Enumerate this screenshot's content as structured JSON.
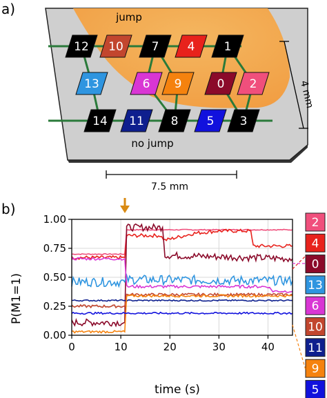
{
  "panel_a": {
    "label": "a)",
    "region_jump": "jump",
    "region_nojump": "no jump",
    "dim_height": "4 mm",
    "dim_width": "7.5 mm",
    "qubits": [
      {
        "id": "12",
        "color": "#000000"
      },
      {
        "id": "10",
        "color": "#c2462e"
      },
      {
        "id": "7",
        "color": "#000000"
      },
      {
        "id": "4",
        "color": "#e8221c"
      },
      {
        "id": "1",
        "color": "#000000"
      },
      {
        "id": "13",
        "color": "#2f95e0"
      },
      {
        "id": "6",
        "color": "#d936d4"
      },
      {
        "id": "9",
        "color": "#f5820e"
      },
      {
        "id": "0",
        "color": "#8b0a2a"
      },
      {
        "id": "2",
        "color": "#f04f7c"
      },
      {
        "id": "14",
        "color": "#000000"
      },
      {
        "id": "11",
        "color": "#0e1f8e"
      },
      {
        "id": "8",
        "color": "#000000"
      },
      {
        "id": "5",
        "color": "#1111dd"
      },
      {
        "id": "3",
        "color": "#000000"
      }
    ],
    "colors": {
      "substrate": "#cfcfcf",
      "jump_region": "#f7a84a",
      "coupler": "#2a7a3a"
    }
  },
  "panel_b": {
    "label": "b)",
    "event_marker_color": "#d98a12",
    "legend": [
      {
        "id": "2",
        "color": "#f04f7c"
      },
      {
        "id": "4",
        "color": "#e8221c"
      },
      {
        "id": "0",
        "color": "#8b0a2a"
      },
      {
        "id": "13",
        "color": "#2f95e0"
      },
      {
        "id": "6",
        "color": "#d936d4"
      },
      {
        "id": "10",
        "color": "#c2462e"
      },
      {
        "id": "11",
        "color": "#0e1f8e"
      },
      {
        "id": "9",
        "color": "#f5820e"
      },
      {
        "id": "5",
        "color": "#1111dd"
      }
    ]
  },
  "chart_data": {
    "type": "line",
    "xlabel": "time (s)",
    "ylabel": "P(M1=1)",
    "xlim": [
      0,
      45
    ],
    "ylim": [
      0,
      1
    ],
    "xticks": [
      "0",
      "10",
      "20",
      "30",
      "40"
    ],
    "yticks": [
      "0.00",
      "0.25",
      "0.50",
      "0.75",
      "1.00"
    ],
    "grid": true,
    "event_time": 11,
    "series": [
      {
        "name": "2",
        "color": "#f04f7c",
        "x": [
          0,
          10.8,
          11.2,
          45
        ],
        "y": [
          0.7,
          0.7,
          0.91,
          0.91
        ]
      },
      {
        "name": "4",
        "color": "#e8221c",
        "x": [
          0,
          10.8,
          11.2,
          18,
          19,
          25,
          30,
          36.5,
          37,
          45
        ],
        "y": [
          0.67,
          0.67,
          0.86,
          0.86,
          0.82,
          0.88,
          0.9,
          0.9,
          0.77,
          0.77
        ]
      },
      {
        "name": "0",
        "color": "#8b0a2a",
        "x": [
          0,
          10.8,
          11.2,
          18.5,
          19,
          45
        ],
        "y": [
          0.11,
          0.11,
          0.93,
          0.93,
          0.69,
          0.66
        ]
      },
      {
        "name": "13",
        "color": "#2f95e0",
        "x": [
          0,
          10.8,
          11.2,
          45
        ],
        "y": [
          0.46,
          0.46,
          0.48,
          0.47
        ]
      },
      {
        "name": "6",
        "color": "#d936d4",
        "x": [
          0,
          10.8,
          11.2,
          40,
          41,
          45
        ],
        "y": [
          0.66,
          0.66,
          0.42,
          0.42,
          0.38,
          0.38
        ]
      },
      {
        "name": "10",
        "color": "#c2462e",
        "x": [
          0,
          10.8,
          11.2,
          45
        ],
        "y": [
          0.25,
          0.25,
          0.35,
          0.35
        ]
      },
      {
        "name": "11",
        "color": "#0e1f8e",
        "x": [
          0,
          10.8,
          11.2,
          45
        ],
        "y": [
          0.3,
          0.3,
          0.3,
          0.3
        ]
      },
      {
        "name": "9",
        "color": "#f5820e",
        "x": [
          0,
          10.8,
          11.2,
          45
        ],
        "y": [
          0.03,
          0.03,
          0.34,
          0.34
        ]
      },
      {
        "name": "5",
        "color": "#1111dd",
        "x": [
          0,
          10.8,
          11.2,
          45
        ],
        "y": [
          0.19,
          0.19,
          0.19,
          0.19
        ]
      }
    ]
  }
}
